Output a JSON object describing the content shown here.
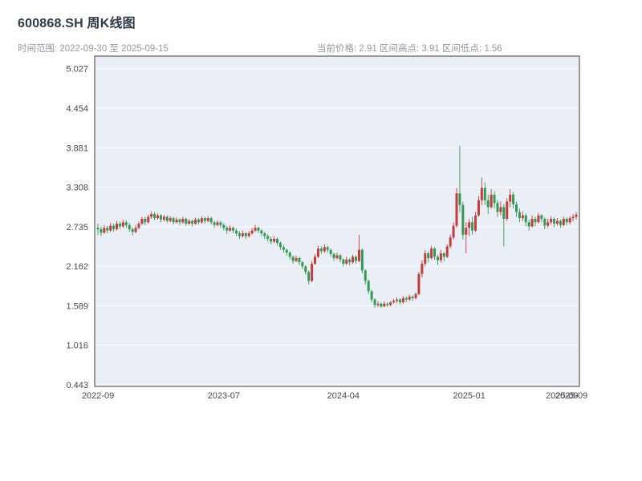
{
  "header": {
    "title": "600868.SH 周K线图",
    "subtitle": "时间范围: 2022-09-30 至 2025-09-15",
    "info": "当前价格: 2.91  区间高点: 3.91  区间低点: 1.56"
  },
  "chart_data": {
    "type": "candlestick",
    "title": "600868.SH 周K线图",
    "period": "weekly",
    "date_range_start": "2022-09-30",
    "date_range_end": "2025-09-15",
    "current_price": 2.91,
    "range_high": 3.91,
    "range_low": 1.56,
    "ylim": [
      0.42,
      5.21
    ],
    "yticks": [
      0.443,
      1.016,
      1.589,
      2.162,
      2.735,
      3.308,
      3.881,
      4.454,
      5.027
    ],
    "xticks": [
      {
        "label": "2022-09",
        "index": 0
      },
      {
        "label": "2023-07",
        "index": 40
      },
      {
        "label": "2024-04",
        "index": 78
      },
      {
        "label": "2025-01",
        "index": 118
      },
      {
        "label": "2025-09",
        "index": 147.5
      },
      {
        "label": "2025-09",
        "index": 150.5
      }
    ],
    "grid": true,
    "legend": "none",
    "colors": {
      "up": "#c53d3a",
      "down": "#339a55",
      "plot_bg": "#eaeef6",
      "grid": "#fbfcfe",
      "axis": "#3c3c3c",
      "tick_text": "#444b52",
      "title_text": "#2f3a47",
      "subtitle_text": "#939aa3"
    },
    "candles": [
      [
        2.72,
        2.78,
        2.62,
        2.7
      ],
      [
        2.7,
        2.74,
        2.6,
        2.65
      ],
      [
        2.65,
        2.76,
        2.63,
        2.72
      ],
      [
        2.72,
        2.75,
        2.64,
        2.68
      ],
      [
        2.68,
        2.79,
        2.66,
        2.75
      ],
      [
        2.75,
        2.78,
        2.66,
        2.7
      ],
      [
        2.7,
        2.82,
        2.68,
        2.78
      ],
      [
        2.78,
        2.81,
        2.7,
        2.74
      ],
      [
        2.74,
        2.84,
        2.72,
        2.8
      ],
      [
        2.8,
        2.83,
        2.72,
        2.76
      ],
      [
        2.76,
        2.79,
        2.66,
        2.7
      ],
      [
        2.7,
        2.73,
        2.61,
        2.66
      ],
      [
        2.66,
        2.76,
        2.64,
        2.72
      ],
      [
        2.72,
        2.81,
        2.7,
        2.78
      ],
      [
        2.78,
        2.88,
        2.76,
        2.85
      ],
      [
        2.85,
        2.88,
        2.76,
        2.8
      ],
      [
        2.8,
        2.91,
        2.78,
        2.88
      ],
      [
        2.88,
        2.96,
        2.85,
        2.92
      ],
      [
        2.92,
        2.95,
        2.83,
        2.86
      ],
      [
        2.86,
        2.93,
        2.84,
        2.9
      ],
      [
        2.9,
        2.92,
        2.8,
        2.84
      ],
      [
        2.84,
        2.91,
        2.81,
        2.88
      ],
      [
        2.88,
        2.9,
        2.79,
        2.82
      ],
      [
        2.82,
        2.89,
        2.8,
        2.86
      ],
      [
        2.86,
        2.88,
        2.77,
        2.8
      ],
      [
        2.8,
        2.87,
        2.78,
        2.84
      ],
      [
        2.84,
        2.86,
        2.76,
        2.8
      ],
      [
        2.8,
        2.88,
        2.78,
        2.85
      ],
      [
        2.85,
        2.87,
        2.75,
        2.78
      ],
      [
        2.78,
        2.85,
        2.76,
        2.82
      ],
      [
        2.82,
        2.84,
        2.74,
        2.78
      ],
      [
        2.78,
        2.87,
        2.76,
        2.84
      ],
      [
        2.84,
        2.86,
        2.77,
        2.8
      ],
      [
        2.8,
        2.89,
        2.78,
        2.86
      ],
      [
        2.86,
        2.88,
        2.78,
        2.82
      ],
      [
        2.82,
        2.89,
        2.8,
        2.86
      ],
      [
        2.86,
        2.88,
        2.77,
        2.8
      ],
      [
        2.8,
        2.82,
        2.72,
        2.76
      ],
      [
        2.76,
        2.83,
        2.74,
        2.8
      ],
      [
        2.8,
        2.82,
        2.72,
        2.76
      ],
      [
        2.76,
        2.79,
        2.68,
        2.72
      ],
      [
        2.72,
        2.75,
        2.63,
        2.68
      ],
      [
        2.68,
        2.76,
        2.66,
        2.72
      ],
      [
        2.72,
        2.74,
        2.64,
        2.68
      ],
      [
        2.68,
        2.71,
        2.6,
        2.64
      ],
      [
        2.64,
        2.67,
        2.56,
        2.6
      ],
      [
        2.6,
        2.68,
        2.58,
        2.64
      ],
      [
        2.64,
        2.66,
        2.56,
        2.6
      ],
      [
        2.6,
        2.67,
        2.58,
        2.64
      ],
      [
        2.64,
        2.72,
        2.62,
        2.68
      ],
      [
        2.68,
        2.76,
        2.66,
        2.72
      ],
      [
        2.72,
        2.74,
        2.64,
        2.68
      ],
      [
        2.68,
        2.7,
        2.6,
        2.64
      ],
      [
        2.64,
        2.66,
        2.56,
        2.6
      ],
      [
        2.6,
        2.63,
        2.52,
        2.56
      ],
      [
        2.56,
        2.59,
        2.48,
        2.52
      ],
      [
        2.52,
        2.6,
        2.5,
        2.56
      ],
      [
        2.56,
        2.58,
        2.46,
        2.5
      ],
      [
        2.5,
        2.52,
        2.4,
        2.44
      ],
      [
        2.44,
        2.47,
        2.36,
        2.4
      ],
      [
        2.4,
        2.42,
        2.32,
        2.36
      ],
      [
        2.36,
        2.38,
        2.26,
        2.3
      ],
      [
        2.3,
        2.32,
        2.2,
        2.24
      ],
      [
        2.24,
        2.32,
        2.22,
        2.28
      ],
      [
        2.28,
        2.3,
        2.18,
        2.22
      ],
      [
        2.22,
        2.24,
        2.12,
        2.16
      ],
      [
        2.16,
        2.18,
        2.04,
        2.08
      ],
      [
        2.08,
        2.1,
        1.9,
        1.95
      ],
      [
        1.95,
        2.24,
        1.93,
        2.2
      ],
      [
        2.2,
        2.34,
        2.18,
        2.3
      ],
      [
        2.3,
        2.46,
        2.28,
        2.42
      ],
      [
        2.42,
        2.45,
        2.34,
        2.38
      ],
      [
        2.38,
        2.48,
        2.36,
        2.44
      ],
      [
        2.44,
        2.46,
        2.36,
        2.4
      ],
      [
        2.4,
        2.42,
        2.3,
        2.34
      ],
      [
        2.34,
        2.36,
        2.24,
        2.28
      ],
      [
        2.28,
        2.36,
        2.26,
        2.32
      ],
      [
        2.32,
        2.34,
        2.22,
        2.26
      ],
      [
        2.26,
        2.28,
        2.16,
        2.2
      ],
      [
        2.2,
        2.3,
        2.18,
        2.26
      ],
      [
        2.26,
        2.28,
        2.18,
        2.22
      ],
      [
        2.22,
        2.33,
        2.2,
        2.3
      ],
      [
        2.3,
        2.32,
        2.2,
        2.24
      ],
      [
        2.24,
        2.62,
        2.22,
        2.4
      ],
      [
        2.4,
        2.42,
        2.06,
        2.1
      ],
      [
        2.1,
        2.12,
        1.9,
        1.95
      ],
      [
        1.95,
        1.97,
        1.76,
        1.8
      ],
      [
        1.8,
        1.82,
        1.64,
        1.68
      ],
      [
        1.68,
        1.7,
        1.56,
        1.6
      ],
      [
        1.6,
        1.66,
        1.57,
        1.62
      ],
      [
        1.62,
        1.64,
        1.56,
        1.58
      ],
      [
        1.58,
        1.65,
        1.57,
        1.62
      ],
      [
        1.62,
        1.64,
        1.57,
        1.6
      ],
      [
        1.6,
        1.66,
        1.58,
        1.64
      ],
      [
        1.64,
        1.69,
        1.62,
        1.66
      ],
      [
        1.66,
        1.71,
        1.63,
        1.68
      ],
      [
        1.68,
        1.7,
        1.61,
        1.64
      ],
      [
        1.64,
        1.73,
        1.62,
        1.7
      ],
      [
        1.7,
        1.72,
        1.64,
        1.68
      ],
      [
        1.68,
        1.75,
        1.66,
        1.72
      ],
      [
        1.72,
        1.74,
        1.66,
        1.7
      ],
      [
        1.7,
        1.78,
        1.68,
        1.76
      ],
      [
        1.76,
        2.08,
        1.74,
        2.05
      ],
      [
        2.05,
        2.25,
        2.0,
        2.2
      ],
      [
        2.2,
        2.4,
        2.16,
        2.35
      ],
      [
        2.35,
        2.38,
        2.22,
        2.28
      ],
      [
        2.28,
        2.46,
        2.26,
        2.42
      ],
      [
        2.42,
        2.44,
        2.26,
        2.3
      ],
      [
        2.3,
        2.33,
        2.18,
        2.25
      ],
      [
        2.25,
        2.4,
        2.22,
        2.35
      ],
      [
        2.35,
        2.37,
        2.24,
        2.3
      ],
      [
        2.3,
        2.48,
        2.28,
        2.45
      ],
      [
        2.45,
        2.62,
        2.42,
        2.58
      ],
      [
        2.58,
        2.8,
        2.55,
        2.75
      ],
      [
        2.75,
        3.3,
        2.72,
        3.22
      ],
      [
        3.22,
        3.91,
        2.95,
        3.05
      ],
      [
        3.05,
        3.1,
        2.55,
        2.62
      ],
      [
        2.62,
        2.8,
        2.35,
        2.72
      ],
      [
        2.72,
        2.85,
        2.6,
        2.8
      ],
      [
        2.8,
        2.88,
        2.62,
        2.68
      ],
      [
        2.68,
        2.95,
        2.66,
        2.9
      ],
      [
        2.9,
        3.18,
        2.88,
        3.12
      ],
      [
        3.12,
        3.45,
        3.05,
        3.3
      ],
      [
        3.3,
        3.38,
        3.05,
        3.12
      ],
      [
        3.12,
        3.2,
        2.92,
        3.02
      ],
      [
        3.02,
        3.28,
        3.0,
        3.2
      ],
      [
        3.2,
        3.25,
        3.0,
        3.08
      ],
      [
        3.08,
        3.12,
        2.88,
        2.95
      ],
      [
        2.95,
        3.1,
        2.9,
        3.02
      ],
      [
        3.02,
        3.06,
        2.45,
        2.85
      ],
      [
        2.85,
        3.15,
        2.82,
        3.1
      ],
      [
        3.1,
        3.28,
        3.02,
        3.2
      ],
      [
        3.2,
        3.24,
        3.0,
        3.06
      ],
      [
        3.06,
        3.1,
        2.88,
        2.95
      ],
      [
        2.95,
        3.0,
        2.8,
        2.86
      ],
      [
        2.86,
        2.96,
        2.82,
        2.9
      ],
      [
        2.9,
        2.93,
        2.74,
        2.8
      ],
      [
        2.8,
        2.84,
        2.68,
        2.74
      ],
      [
        2.74,
        2.9,
        2.72,
        2.85
      ],
      [
        2.85,
        2.88,
        2.74,
        2.8
      ],
      [
        2.8,
        2.94,
        2.78,
        2.9
      ],
      [
        2.9,
        2.92,
        2.8,
        2.85
      ],
      [
        2.85,
        2.87,
        2.7,
        2.75
      ],
      [
        2.75,
        2.85,
        2.72,
        2.8
      ],
      [
        2.8,
        2.89,
        2.77,
        2.85
      ],
      [
        2.85,
        2.87,
        2.73,
        2.78
      ],
      [
        2.78,
        2.86,
        2.75,
        2.82
      ],
      [
        2.82,
        2.84,
        2.72,
        2.76
      ],
      [
        2.76,
        2.88,
        2.74,
        2.85
      ],
      [
        2.85,
        2.87,
        2.76,
        2.8
      ],
      [
        2.8,
        2.89,
        2.77,
        2.86
      ],
      [
        2.86,
        2.92,
        2.82,
        2.88
      ],
      [
        2.88,
        2.95,
        2.84,
        2.91
      ]
    ]
  }
}
